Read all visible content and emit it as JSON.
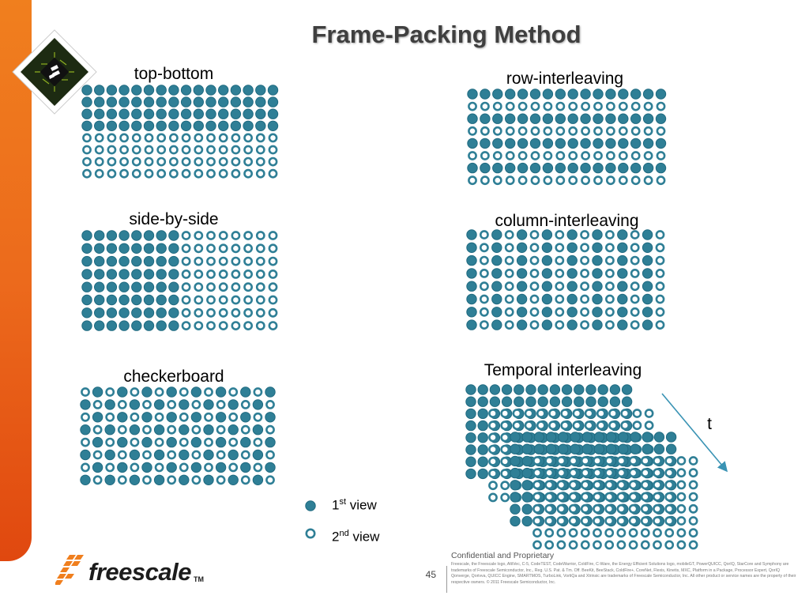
{
  "slide": {
    "title": "Frame-Packing Method",
    "labels": {
      "top_bottom": "top-bottom",
      "row_interleaving": "row-interleaving",
      "side_by_side": "side-by-side",
      "column_interleaving": "column-interleaving",
      "checkerboard": "checkerboard",
      "temporal_interleaving": "Temporal interleaving",
      "time_axis": "t"
    },
    "legend": {
      "first_view": {
        "number": "1",
        "suffix": "st",
        "text": "view"
      },
      "second_view": {
        "number": "2",
        "suffix": "nd",
        "text": "view"
      }
    },
    "footer": {
      "logo_text": "freescale",
      "trademark": "TM",
      "page_number": "45",
      "confidential": "Confidential and Proprietary",
      "legal": "Freescale, the Freescale logo, AltiVec, C-5, CodeTEST, CodeWarrior, ColdFire, C-Ware, the Energy Efficient Solutions logo, mobileGT, PowerQUICC, QorIQ, StarCore and Symphony are trademarks of Freescale Semiconductor, Inc., Reg. U.S. Pat. & Tm. Off. BeeKit, BeeStack, ColdFire+, CoreNet, Flexis, Kinetis, MXC, Platform in a Package, Processor Expert, QorIQ Qonverge, Qorivva, QUICC Engine, SMARTMOS, TurboLink, VortiQa and Xtrinsic are trademarks of Freescale Semiconductor, Inc. All other product or service names are the property of their respective owners. © 2011 Freescale Semiconductor, Inc."
    }
  },
  "colors": {
    "view_fill": "#2f7f96",
    "view_stroke": "#1f6a80",
    "second_view_stroke": "#2f7f96",
    "arrow": "#3a93b4",
    "sidebar": "#ec6a1c",
    "title": "#3f3f3f"
  },
  "patterns": {
    "top_bottom": {
      "rows": 8,
      "cols": 16,
      "rule": "first 4 rows 1st view, last 4 rows 2nd view"
    },
    "row_interleaving": {
      "rows": 8,
      "cols": 16,
      "rule": "alternating rows, starting with 1st view"
    },
    "side_by_side": {
      "rows": 8,
      "cols": 16,
      "rule": "left 8 columns 1st view, right 8 columns 2nd view"
    },
    "column_interleaving": {
      "rows": 8,
      "cols": 16,
      "rule": "alternating columns, starting with 1st view"
    },
    "checkerboard": {
      "rows": 8,
      "cols": 16,
      "rule": "alternating cells, starting with 2nd view"
    },
    "temporal_interleaving": {
      "frames": 4,
      "rows": 8,
      "cols": 14,
      "rule": "stacked frames alternating 1st and 2nd view along time"
    }
  },
  "icons": {
    "badge": "chip-badge-icon",
    "time_arrow": "time-arrow-icon",
    "logo": "freescale-logo-icon"
  }
}
